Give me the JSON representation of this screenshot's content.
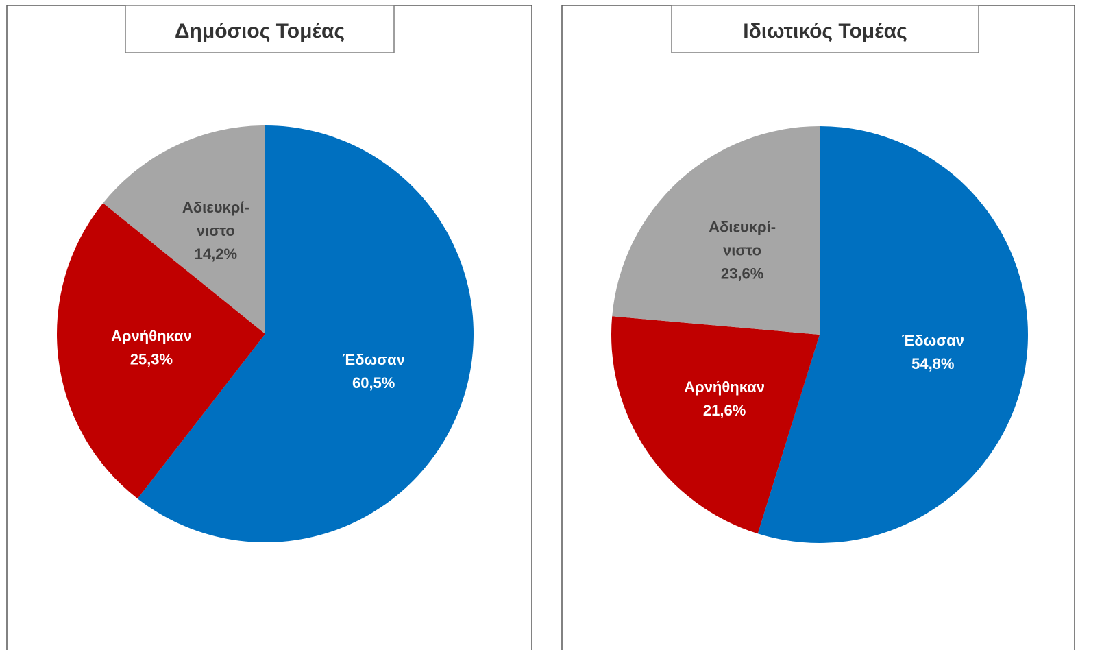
{
  "chart_data": [
    {
      "type": "pie",
      "title": "Δημόσιος Τομέας",
      "categories": [
        "Έδωσαν",
        "Αρνήθηκαν",
        "Αδιευκρί-νιστο"
      ],
      "values": [
        60.5,
        25.3,
        14.2
      ],
      "value_labels": [
        "60,5%",
        "25,3%",
        "14,2%"
      ],
      "colors": [
        "#0070C0",
        "#C00000",
        "#A6A6A6"
      ]
    },
    {
      "type": "pie",
      "title": "Ιδιωτικός Τομέας",
      "categories": [
        "Έδωσαν",
        "Αρνήθηκαν",
        "Αδιευκρί-νιστο"
      ],
      "values": [
        54.8,
        21.6,
        23.6
      ],
      "value_labels": [
        "54,8%",
        "21,6%",
        "23,6%"
      ],
      "colors": [
        "#0070C0",
        "#C00000",
        "#A6A6A6"
      ]
    }
  ]
}
